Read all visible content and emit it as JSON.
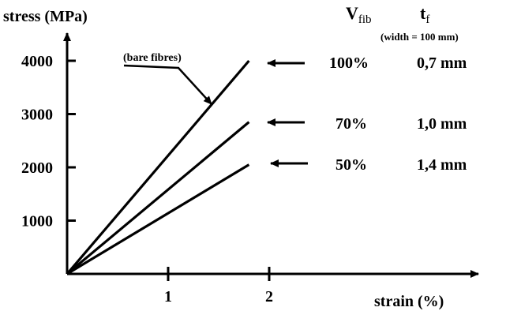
{
  "chart_data": {
    "type": "line",
    "ylabel": "stress (MPa)",
    "xlabel": "strain (%)",
    "x_ticks": [
      1,
      2
    ],
    "y_ticks": [
      1000,
      2000,
      3000,
      4000
    ],
    "xlim": [
      0,
      3.7
    ],
    "ylim": [
      0,
      4500
    ],
    "series": [
      {
        "x": [
          0,
          1.8
        ],
        "y": [
          0,
          4000
        ]
      },
      {
        "x": [
          0,
          1.8
        ],
        "y": [
          0,
          2850
        ]
      },
      {
        "x": [
          0,
          1.8
        ],
        "y": [
          0,
          2050
        ]
      }
    ],
    "annotation": "(bare fibres)",
    "header": {
      "vfib_base": "V",
      "vfib_sub": "fib",
      "tf_base": "t",
      "tf_sub": "f",
      "width_note": "(width = 100 mm)"
    },
    "rows": [
      {
        "vfib": "100%",
        "tf": "0,7 mm"
      },
      {
        "vfib": "70%",
        "tf": "1,0 mm"
      },
      {
        "vfib": "50%",
        "tf": "1,4 mm"
      }
    ]
  }
}
